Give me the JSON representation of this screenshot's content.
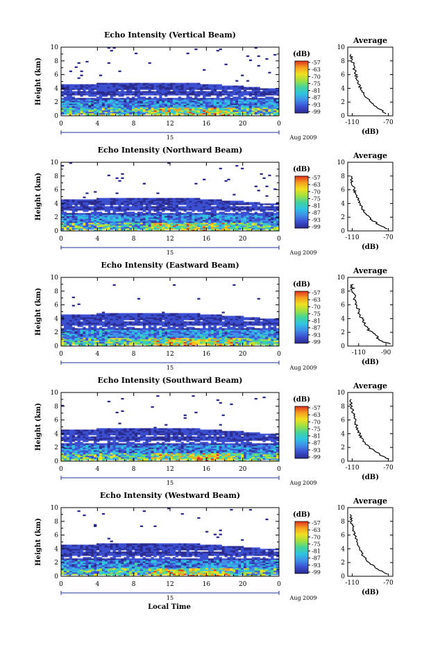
{
  "figure": {
    "x_axis_label": "Local Time",
    "date_label": "Aug 2009",
    "colorbar_unit": "(dB)",
    "colorbar_ticks": [
      "-57",
      "-63",
      "-70",
      "-75",
      "-81",
      "-87",
      "-93",
      "-99"
    ],
    "colors": {
      "colorbar_stops": [
        "#2b2b8f",
        "#3b4fd0",
        "#3f8fe8",
        "#2fc4e0",
        "#45d49a",
        "#a0e040",
        "#f0e020",
        "#f5a020",
        "#e03020"
      ]
    }
  },
  "chart_data": [
    {
      "type": "heatmap",
      "title": "Echo Intensity (Vertical Beam)",
      "ylabel": "Height (km)",
      "xlim": [
        0,
        24
      ],
      "ylim": [
        0,
        10
      ],
      "x_ticks": [
        "0",
        "4",
        "8",
        "12",
        "16",
        "20",
        "0"
      ],
      "y_ticks": [
        "0",
        "2",
        "4",
        "6",
        "8",
        "10"
      ],
      "day_label": "15",
      "layers": [
        {
          "top_km": 4.5,
          "dominant_dB": -99
        },
        {
          "top_km": 2.5,
          "dominant_dB": -93
        },
        {
          "top_km": 1.2,
          "dominant_dB": -81
        }
      ],
      "profile": {
        "title": "Average",
        "xlabel": "(dB)",
        "x_ticks": [
          "-110",
          "-70"
        ],
        "xlim": [
          -115,
          -65
        ],
        "y_ticks": [
          "0",
          "2",
          "4",
          "6",
          "8",
          "10"
        ],
        "heights_km": [
          0.3,
          1,
          2,
          3,
          4,
          5,
          6,
          7,
          8,
          9
        ],
        "values_dB": [
          -72,
          -80,
          -90,
          -96,
          -101,
          -104,
          -106,
          -108,
          -110,
          -112
        ]
      }
    },
    {
      "type": "heatmap",
      "title": "Echo Intensity (Northward Beam)",
      "ylabel": "Height (km)",
      "xlim": [
        0,
        24
      ],
      "ylim": [
        0,
        10
      ],
      "x_ticks": [
        "0",
        "4",
        "8",
        "12",
        "16",
        "20",
        "0"
      ],
      "y_ticks": [
        "0",
        "2",
        "4",
        "6",
        "8",
        "10"
      ],
      "day_label": "15",
      "layers": [
        {
          "top_km": 4.5,
          "dominant_dB": -99
        },
        {
          "top_km": 2.5,
          "dominant_dB": -93
        },
        {
          "top_km": 1.2,
          "dominant_dB": -81
        }
      ],
      "profile": {
        "title": "Average",
        "xlabel": "(dB)",
        "x_ticks": [
          "-110",
          "-70"
        ],
        "xlim": [
          -115,
          -65
        ],
        "y_ticks": [
          "0",
          "2",
          "4",
          "6",
          "8",
          "10"
        ],
        "heights_km": [
          0.3,
          1,
          2,
          3,
          4,
          5,
          6,
          7,
          8
        ],
        "values_dB": [
          -72,
          -82,
          -92,
          -98,
          -102,
          -105,
          -108,
          -110,
          -112
        ]
      }
    },
    {
      "type": "heatmap",
      "title": "Echo Intensity (Eastward Beam)",
      "ylabel": "Height (km)",
      "xlim": [
        0,
        24
      ],
      "ylim": [
        0,
        10
      ],
      "x_ticks": [
        "0",
        "4",
        "8",
        "12",
        "16",
        "20",
        "0"
      ],
      "y_ticks": [
        "0",
        "2",
        "4",
        "6",
        "8",
        "10"
      ],
      "day_label": "15",
      "layers": [
        {
          "top_km": 4.5,
          "dominant_dB": -99
        },
        {
          "top_km": 2.5,
          "dominant_dB": -93
        },
        {
          "top_km": 1.2,
          "dominant_dB": -81
        }
      ],
      "profile": {
        "title": "Average",
        "xlabel": "(dB)",
        "x_ticks": [
          "-110",
          "-90"
        ],
        "xlim": [
          -118,
          -85
        ],
        "y_ticks": [
          "0",
          "2",
          "4",
          "6",
          "8",
          "10"
        ],
        "heights_km": [
          0.3,
          1,
          2,
          3,
          4,
          5,
          6,
          7,
          8,
          9
        ],
        "values_dB": [
          -88,
          -95,
          -101,
          -105,
          -108,
          -110,
          -112,
          -113,
          -114,
          -115
        ]
      }
    },
    {
      "type": "heatmap",
      "title": "Echo Intensity (Southward Beam)",
      "ylabel": "Height (km)",
      "xlim": [
        0,
        24
      ],
      "ylim": [
        0,
        10
      ],
      "x_ticks": [
        "0",
        "4",
        "8",
        "12",
        "16",
        "20",
        "0"
      ],
      "y_ticks": [
        "0",
        "2",
        "4",
        "6",
        "8",
        "10"
      ],
      "day_label": "15",
      "layers": [
        {
          "top_km": 4.5,
          "dominant_dB": -99
        },
        {
          "top_km": 2.5,
          "dominant_dB": -93
        },
        {
          "top_km": 1.2,
          "dominant_dB": -81
        }
      ],
      "profile": {
        "title": "Average",
        "xlabel": "(dB)",
        "x_ticks": [
          "-110",
          "-70"
        ],
        "xlim": [
          -115,
          -65
        ],
        "y_ticks": [
          "0",
          "2",
          "4",
          "6",
          "8",
          "10"
        ],
        "heights_km": [
          0.3,
          1,
          2,
          3,
          4,
          5,
          6,
          7,
          8,
          9
        ],
        "values_dB": [
          -70,
          -80,
          -91,
          -98,
          -102,
          -105,
          -107,
          -109,
          -111,
          -112
        ]
      }
    },
    {
      "type": "heatmap",
      "title": "Echo Intensity (Westward Beam)",
      "ylabel": "Height (km)",
      "xlim": [
        0,
        24
      ],
      "ylim": [
        0,
        10
      ],
      "x_ticks": [
        "0",
        "4",
        "8",
        "12",
        "16",
        "20",
        "0"
      ],
      "y_ticks": [
        "0",
        "2",
        "4",
        "6",
        "8",
        "10"
      ],
      "day_label": "15",
      "layers": [
        {
          "top_km": 4.5,
          "dominant_dB": -99
        },
        {
          "top_km": 2.5,
          "dominant_dB": -93
        },
        {
          "top_km": 1.2,
          "dominant_dB": -81
        }
      ],
      "profile": {
        "title": "Average",
        "xlabel": "(dB)",
        "x_ticks": [
          "-110",
          "-70"
        ],
        "xlim": [
          -115,
          -65
        ],
        "y_ticks": [
          "0",
          "2",
          "4",
          "6",
          "8",
          "10"
        ],
        "heights_km": [
          0.3,
          1,
          2,
          3,
          4,
          5,
          6,
          7,
          8,
          9
        ],
        "values_dB": [
          -72,
          -81,
          -92,
          -98,
          -102,
          -105,
          -107,
          -109,
          -111,
          -112
        ]
      }
    }
  ]
}
